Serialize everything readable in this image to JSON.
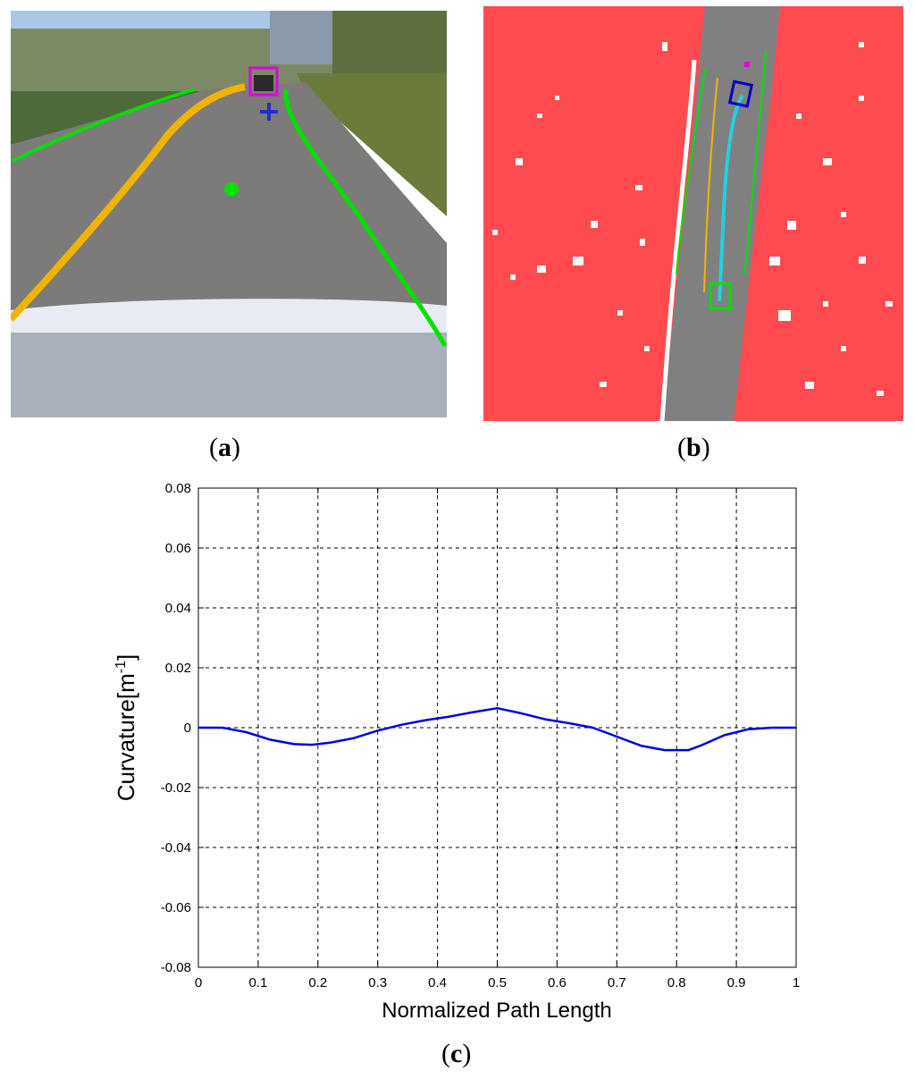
{
  "panels": {
    "a": {
      "label_open": "(",
      "label_letter": "a",
      "label_close": ")"
    },
    "b": {
      "label_open": "(",
      "label_letter": "b",
      "label_close": ")"
    },
    "c": {
      "label_open": "(",
      "label_letter": "c",
      "label_close": ")"
    }
  },
  "colors": {
    "sky": "#a8c8e4",
    "road": "#7d7b7a",
    "grass": "#6b7b3c",
    "hood": "#e8ebf2",
    "lane_green": "#00e000",
    "lane_orange": "#f0b400",
    "target_magenta": "#e000e0",
    "cross_blue": "#1c2fd0",
    "occupancy_red": "#ff4a50",
    "occupancy_gray": "#808080",
    "path_cyan": "#22d0e0",
    "curve_blue": "#0000e0"
  },
  "chart_data": {
    "type": "line",
    "title": "",
    "xlabel": "Normalized Path Length",
    "ylabel_main": "Curvature[m",
    "ylabel_sup": "-1",
    "ylabel_close": "]",
    "xlim": [
      0,
      1
    ],
    "ylim": [
      -0.08,
      0.08
    ],
    "grid": true,
    "x_ticks": [
      "0",
      "0.1",
      "0.2",
      "0.3",
      "0.4",
      "0.5",
      "0.6",
      "0.7",
      "0.8",
      "0.9",
      "1"
    ],
    "y_ticks": [
      "0.08",
      "0.06",
      "0.04",
      "0.02",
      "0",
      "-0.02",
      "-0.04",
      "-0.06",
      "-0.08"
    ],
    "series": [
      {
        "color": "#0000e0",
        "x": [
          0,
          0.04,
          0.08,
          0.12,
          0.16,
          0.19,
          0.22,
          0.26,
          0.3,
          0.34,
          0.38,
          0.42,
          0.46,
          0.5,
          0.54,
          0.58,
          0.62,
          0.66,
          0.7,
          0.74,
          0.78,
          0.82,
          0.84,
          0.88,
          0.92,
          0.96,
          1.0
        ],
        "y": [
          0,
          0,
          -0.0015,
          -0.004,
          -0.0055,
          -0.0057,
          -0.005,
          -0.0035,
          -0.001,
          0.001,
          0.0025,
          0.0037,
          0.0052,
          0.0065,
          0.0048,
          0.0028,
          0.0015,
          0,
          -0.003,
          -0.006,
          -0.0075,
          -0.0075,
          -0.006,
          -0.0025,
          -0.0005,
          0,
          0
        ]
      }
    ]
  }
}
